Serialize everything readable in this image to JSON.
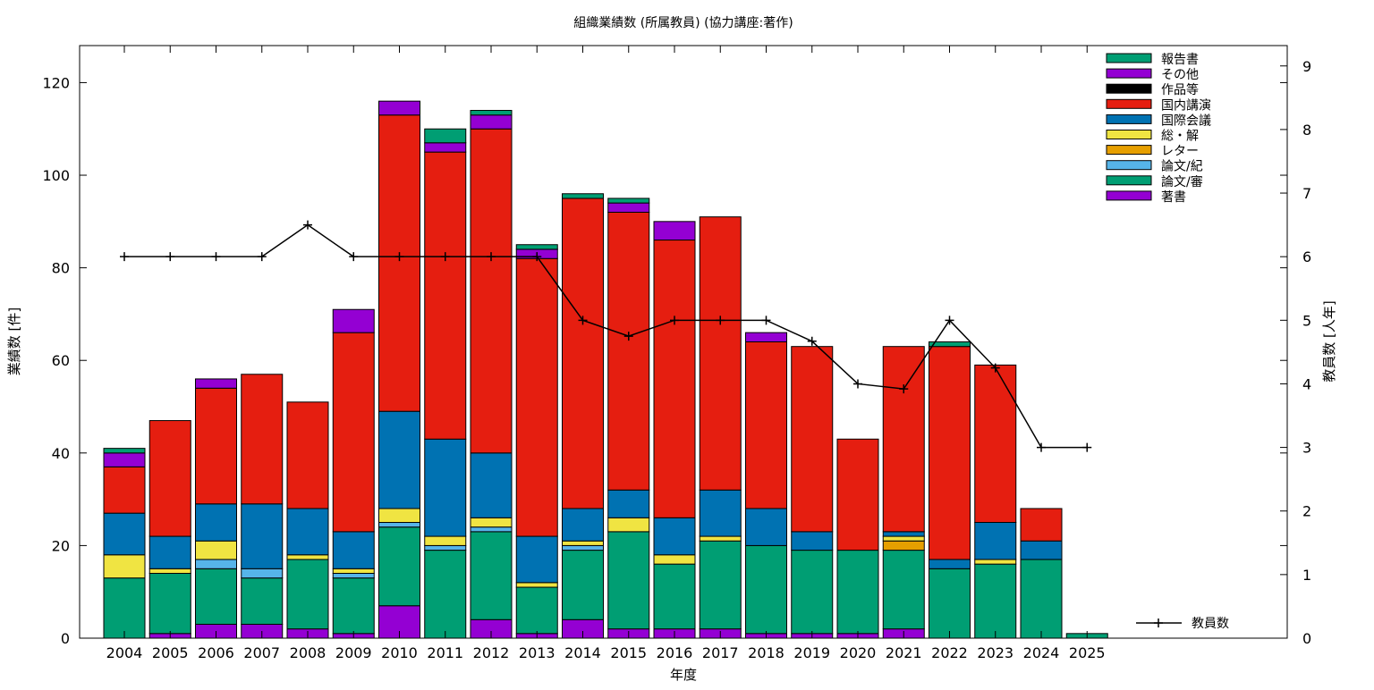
{
  "chart_data": {
    "type": "bar",
    "subtype": "stacked-bar-with-line",
    "title": "組織業績数 (所属教員) (協力講座:著作)",
    "xlabel": "年度",
    "ylabel": "業績数 [件]",
    "y2label": "教員数 [人年]",
    "ylim": [
      0,
      128
    ],
    "y2lim": [
      0,
      9.32
    ],
    "yticks": [
      0,
      20,
      40,
      60,
      80,
      100,
      120
    ],
    "y2ticks": [
      0,
      1,
      2,
      3,
      4,
      5,
      6,
      7,
      8,
      9
    ],
    "grid": false,
    "legend_position": "top-right",
    "categories": [
      "2004",
      "2005",
      "2006",
      "2007",
      "2008",
      "2009",
      "2010",
      "2011",
      "2012",
      "2013",
      "2014",
      "2015",
      "2016",
      "2017",
      "2018",
      "2019",
      "2020",
      "2021",
      "2022",
      "2023",
      "2024",
      "2025"
    ],
    "series": [
      {
        "name": "著書",
        "color": "#9400d3",
        "values": [
          0,
          1,
          3,
          3,
          2,
          1,
          7,
          0,
          4,
          1,
          4,
          2,
          2,
          2,
          1,
          1,
          1,
          2,
          0,
          0,
          0,
          0
        ]
      },
      {
        "name": "論文/審",
        "color": "#009e73",
        "values": [
          13,
          13,
          12,
          10,
          15,
          12,
          17,
          19,
          19,
          10,
          15,
          21,
          14,
          19,
          19,
          18,
          18,
          17,
          15,
          16,
          17,
          1
        ]
      },
      {
        "name": "論文/紀",
        "color": "#56b4e9",
        "values": [
          0,
          0,
          2,
          2,
          0,
          1,
          1,
          1,
          1,
          0,
          1,
          0,
          0,
          0,
          0,
          0,
          0,
          0,
          0,
          0,
          0,
          0
        ]
      },
      {
        "name": "レター",
        "color": "#e69f00",
        "values": [
          0,
          0,
          0,
          0,
          0,
          0,
          0,
          0,
          0,
          0,
          0,
          0,
          0,
          0,
          0,
          0,
          0,
          2,
          0,
          0,
          0,
          0
        ]
      },
      {
        "name": "総・解",
        "color": "#f0e442",
        "values": [
          5,
          1,
          4,
          0,
          1,
          1,
          3,
          2,
          2,
          1,
          1,
          3,
          2,
          1,
          0,
          0,
          0,
          1,
          0,
          1,
          0,
          0
        ]
      },
      {
        "name": "国際会議",
        "color": "#0072b2",
        "values": [
          9,
          7,
          8,
          14,
          10,
          8,
          21,
          21,
          14,
          10,
          7,
          6,
          8,
          10,
          8,
          4,
          0,
          1,
          2,
          8,
          4,
          0
        ]
      },
      {
        "name": "国内講演",
        "color": "#e51e10",
        "values": [
          10,
          25,
          25,
          28,
          23,
          43,
          64,
          62,
          70,
          60,
          67,
          60,
          60,
          59,
          36,
          40,
          24,
          40,
          46,
          34,
          7,
          0
        ]
      },
      {
        "name": "作品等",
        "color": "#000000",
        "values": [
          0,
          0,
          0,
          0,
          0,
          0,
          0,
          0,
          0,
          0,
          0,
          0,
          0,
          0,
          0,
          0,
          0,
          0,
          0,
          0,
          0,
          0
        ]
      },
      {
        "name": "その他",
        "color": "#9400d3",
        "values": [
          3,
          0,
          2,
          0,
          0,
          5,
          3,
          2,
          3,
          2,
          0,
          2,
          4,
          0,
          2,
          0,
          0,
          0,
          0,
          0,
          0,
          0
        ]
      },
      {
        "name": "報告書",
        "color": "#009e73",
        "values": [
          1,
          0,
          0,
          0,
          0,
          0,
          0,
          3,
          1,
          1,
          1,
          1,
          0,
          0,
          0,
          0,
          0,
          0,
          1,
          0,
          0,
          0
        ]
      }
    ],
    "line_series": {
      "name": "教員数",
      "color": "#000000",
      "axis": "y2",
      "x": [
        "2004",
        "2005",
        "2006",
        "2007",
        "2008",
        "2009",
        "2010",
        "2011",
        "2012",
        "2013",
        "2014",
        "2015",
        "2016",
        "2017",
        "2018",
        "2019",
        "2020",
        "2021",
        "2022",
        "2023",
        "2024",
        "2025"
      ],
      "values": [
        6,
        6,
        6,
        6,
        6.5,
        6,
        6,
        6,
        6,
        6,
        5,
        4.75,
        5,
        5,
        5,
        4.67,
        4,
        3.92,
        5,
        4.25,
        3,
        3
      ]
    },
    "legend_order": [
      "報告書",
      "その他",
      "作品等",
      "国内講演",
      "国際会議",
      "総・解",
      "レター",
      "論文/紀",
      "論文/審",
      "著書"
    ]
  }
}
